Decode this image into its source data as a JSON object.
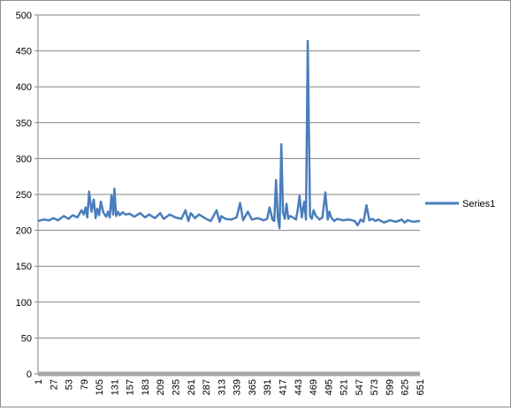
{
  "chart_data": {
    "type": "line",
    "title": "",
    "xlabel": "",
    "ylabel": "",
    "ylim": [
      0,
      500
    ],
    "yticks": [
      0,
      50,
      100,
      150,
      200,
      250,
      300,
      350,
      400,
      450,
      500
    ],
    "xlim": [
      1,
      651
    ],
    "xticks": [
      1,
      27,
      53,
      79,
      105,
      131,
      157,
      183,
      209,
      235,
      261,
      287,
      313,
      339,
      365,
      391,
      417,
      443,
      469,
      495,
      521,
      547,
      573,
      599,
      625,
      651
    ],
    "grid": "horizontal",
    "legend_position": "right",
    "series_color": "#4a7ebb",
    "series": [
      {
        "name": "Series1",
        "x": [
          1,
          10,
          20,
          27,
          35,
          45,
          53,
          60,
          68,
          75,
          79,
          82,
          85,
          88,
          92,
          96,
          99,
          102,
          105,
          108,
          112,
          117,
          120,
          123,
          126,
          129,
          131,
          134,
          137,
          140,
          145,
          150,
          157,
          165,
          175,
          183,
          190,
          200,
          209,
          215,
          225,
          235,
          245,
          252,
          257,
          261,
          268,
          275,
          287,
          295,
          305,
          310,
          313,
          320,
          330,
          339,
          345,
          350,
          358,
          365,
          375,
          385,
          391,
          395,
          400,
          403,
          406,
          409,
          412,
          415,
          418,
          421,
          424,
          427,
          430,
          435,
          440,
          443,
          446,
          450,
          454,
          457,
          460,
          464,
          467,
          470,
          474,
          480,
          485,
          490,
          494,
          497,
          500,
          505,
          510,
          520,
          530,
          540,
          545,
          550,
          555,
          560,
          565,
          570,
          575,
          580,
          590,
          600,
          610,
          620,
          625,
          630,
          640,
          651
        ],
        "y": [
          213,
          215,
          214,
          217,
          214,
          220,
          216,
          221,
          218,
          228,
          222,
          232,
          218,
          254,
          226,
          243,
          217,
          230,
          221,
          240,
          225,
          219,
          226,
          218,
          249,
          222,
          258,
          220,
          226,
          221,
          225,
          222,
          223,
          219,
          224,
          218,
          222,
          217,
          224,
          216,
          222,
          218,
          216,
          228,
          213,
          224,
          217,
          222,
          216,
          213,
          228,
          212,
          220,
          216,
          215,
          218,
          238,
          214,
          226,
          215,
          217,
          214,
          216,
          232,
          215,
          213,
          270,
          218,
          203,
          320,
          225,
          216,
          237,
          216,
          220,
          218,
          215,
          229,
          248,
          218,
          240,
          215,
          464,
          220,
          216,
          228,
          220,
          215,
          218,
          253,
          215,
          226,
          218,
          213,
          216,
          214,
          215,
          213,
          207,
          215,
          212,
          235,
          214,
          216,
          213,
          215,
          211,
          214,
          212,
          215,
          211,
          214,
          212,
          213
        ]
      }
    ]
  }
}
